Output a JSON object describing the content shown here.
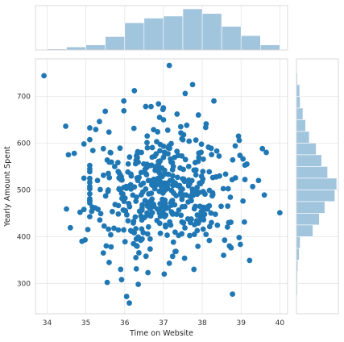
{
  "chart_data": {
    "type": "scatter",
    "subtype": "jointplot",
    "xlabel": "Time on Website",
    "ylabel": "Yearly Amount Spent",
    "xlim": [
      33.7,
      40.2
    ],
    "ylim": [
      235,
      780
    ],
    "xticks": [
      "34",
      "35",
      "36",
      "37",
      "38",
      "39",
      "40"
    ],
    "yticks": [
      "300",
      "400",
      "500",
      "600",
      "700"
    ],
    "grid": true,
    "point_color": "#1f77b4",
    "hist_color": "#9ec2dd",
    "points": [
      [
        33.92,
        744
      ],
      [
        37.15,
        766
      ],
      [
        37.75,
        725
      ],
      [
        37.56,
        706
      ],
      [
        38.3,
        690
      ],
      [
        36.25,
        712
      ],
      [
        35.5,
        668
      ],
      [
        35.98,
        669
      ],
      [
        36.68,
        678
      ],
      [
        38.1,
        641
      ],
      [
        34.48,
        636
      ],
      [
        35.35,
        646
      ],
      [
        36.85,
        624
      ],
      [
        37.9,
        660
      ],
      [
        37.35,
        662
      ],
      [
        36.9,
        655
      ],
      [
        37.6,
        638
      ],
      [
        39.55,
        588
      ],
      [
        39.65,
        580
      ],
      [
        34.7,
        578
      ],
      [
        34.95,
        598
      ],
      [
        35.18,
        584
      ],
      [
        38.85,
        594
      ],
      [
        39.05,
        566
      ],
      [
        39.15,
        555
      ],
      [
        35.3,
        520
      ],
      [
        34.95,
        525
      ],
      [
        34.55,
        575
      ],
      [
        35.45,
        588
      ],
      [
        39.3,
        507
      ],
      [
        39.6,
        489
      ],
      [
        39.05,
        476
      ],
      [
        39.45,
        520
      ],
      [
        40.0,
        451
      ],
      [
        34.5,
        459
      ],
      [
        34.85,
        452
      ],
      [
        34.95,
        458
      ],
      [
        34.6,
        419
      ],
      [
        35.05,
        415
      ],
      [
        35.15,
        454
      ],
      [
        34.9,
        390
      ],
      [
        34.98,
        393
      ],
      [
        35.45,
        365
      ],
      [
        35.65,
        378
      ],
      [
        35.55,
        302
      ],
      [
        35.92,
        308
      ],
      [
        36.05,
        272
      ],
      [
        36.12,
        258
      ],
      [
        36.35,
        298
      ],
      [
        36.3,
        331
      ],
      [
        36.55,
        358
      ],
      [
        36.6,
        323
      ],
      [
        37.02,
        320
      ],
      [
        37.15,
        343
      ],
      [
        37.3,
        368
      ],
      [
        38.78,
        277
      ],
      [
        39.22,
        349
      ],
      [
        38.55,
        360
      ],
      [
        38.7,
        380
      ],
      [
        38.95,
        398
      ]
    ],
    "x_hist": {
      "bin_edges": [
        34.0,
        34.5,
        35.0,
        35.5,
        36.0,
        36.5,
        37.0,
        37.5,
        38.0,
        38.5,
        39.0,
        39.5,
        40.0
      ],
      "counts": [
        2,
        6,
        10,
        26,
        53,
        62,
        66,
        80,
        71,
        46,
        28,
        10
      ]
    },
    "y_hist": {
      "bin_edges": [
        250,
        275,
        300,
        325,
        350,
        375,
        400,
        425,
        450,
        475,
        500,
        525,
        550,
        575,
        600,
        625,
        650,
        675,
        700,
        725,
        750,
        775
      ],
      "counts": [
        1,
        2,
        2,
        3,
        6,
        8,
        36,
        50,
        62,
        84,
        88,
        68,
        55,
        43,
        28,
        20,
        14,
        8,
        7,
        2,
        1
      ]
    }
  }
}
